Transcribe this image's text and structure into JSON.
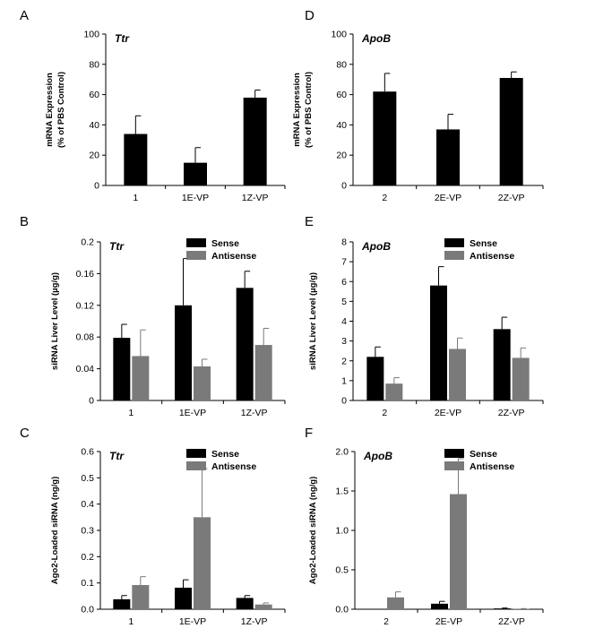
{
  "chart_data": [
    {
      "letter": "A",
      "type": "bar",
      "title": "Ttr",
      "ylabel": [
        "mRNA Expression",
        "(% of PBS Control)"
      ],
      "ylim": [
        0,
        100
      ],
      "yticks": [
        "0",
        "20",
        "40",
        "60",
        "80",
        "100"
      ],
      "categories": [
        "1",
        "1E-VP",
        "1Z-VP"
      ],
      "series": [
        {
          "name": "",
          "color": "#000000",
          "values": [
            34,
            15,
            58
          ],
          "errors": [
            12,
            10,
            5
          ]
        }
      ],
      "legend": []
    },
    {
      "letter": "D",
      "type": "bar",
      "title": "ApoB",
      "ylabel": [
        "mRNA Expression",
        "(% of PBS Control)"
      ],
      "ylim": [
        0,
        100
      ],
      "yticks": [
        "0",
        "20",
        "40",
        "60",
        "80",
        "100"
      ],
      "categories": [
        "2",
        "2E-VP",
        "2Z-VP"
      ],
      "series": [
        {
          "name": "",
          "color": "#000000",
          "values": [
            62,
            37,
            71
          ],
          "errors": [
            12,
            10,
            4
          ]
        }
      ],
      "legend": []
    },
    {
      "letter": "B",
      "type": "bar",
      "title": "Ttr",
      "ylabel": [
        "siRNA Liver Level (µg/g)"
      ],
      "ylim": [
        0,
        0.2
      ],
      "yticks": [
        "0",
        "0.04",
        "0.08",
        "0.12",
        "0.16",
        "0.2"
      ],
      "categories": [
        "1",
        "1E-VP",
        "1Z-VP"
      ],
      "series": [
        {
          "name": "Sense",
          "color": "#000000",
          "values": [
            0.079,
            0.12,
            0.142
          ],
          "errors": [
            0.017,
            0.059,
            0.021
          ]
        },
        {
          "name": "Antisense",
          "color": "#7a7a7a",
          "values": [
            0.056,
            0.043,
            0.07
          ],
          "errors": [
            0.033,
            0.009,
            0.021
          ]
        }
      ],
      "legend": [
        "Sense",
        "Antisense"
      ]
    },
    {
      "letter": "E",
      "type": "bar",
      "title": "ApoB",
      "ylabel": [
        "siRNA Liver Level (µg/g)"
      ],
      "ylim": [
        0,
        8
      ],
      "yticks": [
        "0",
        "1",
        "2",
        "3",
        "4",
        "5",
        "6",
        "7",
        "8"
      ],
      "categories": [
        "2",
        "2E-VP",
        "2Z-VP"
      ],
      "series": [
        {
          "name": "Sense",
          "color": "#000000",
          "values": [
            2.2,
            5.8,
            3.6
          ],
          "errors": [
            0.5,
            0.95,
            0.6
          ]
        },
        {
          "name": "Antisense",
          "color": "#7a7a7a",
          "values": [
            0.85,
            2.6,
            2.15
          ],
          "errors": [
            0.3,
            0.55,
            0.5
          ]
        }
      ],
      "legend": [
        "Sense",
        "Antisense"
      ]
    },
    {
      "letter": "C",
      "type": "bar",
      "title": "Ttr",
      "ylabel": [
        "Ago2-Loaded siRNA (ng/g)"
      ],
      "ylim": [
        0,
        0.6
      ],
      "yticks": [
        "0.0",
        "0.1",
        "0.2",
        "0.3",
        "0.4",
        "0.5",
        "0.6"
      ],
      "categories": [
        "1",
        "1E-VP",
        "1Z-VP"
      ],
      "series": [
        {
          "name": "Sense",
          "color": "#000000",
          "values": [
            0.038,
            0.082,
            0.043
          ],
          "errors": [
            0.014,
            0.03,
            0.009
          ]
        },
        {
          "name": "Antisense",
          "color": "#7a7a7a",
          "values": [
            0.092,
            0.35,
            0.018
          ],
          "errors": [
            0.032,
            0.185,
            0.006
          ]
        }
      ],
      "legend": [
        "Sense",
        "Antisense"
      ]
    },
    {
      "letter": "F",
      "type": "bar",
      "title": "ApoB",
      "ylabel": [
        "Ago2-Loaded siRNA (ng/g)"
      ],
      "ylim": [
        0,
        2.0
      ],
      "yticks": [
        "0.0",
        "0.5",
        "1.0",
        "1.5",
        "2.0"
      ],
      "categories": [
        "2",
        "2E-VP",
        "2Z-VP"
      ],
      "series": [
        {
          "name": "Sense",
          "color": "#000000",
          "values": [
            0.0,
            0.07,
            0.01
          ],
          "errors": [
            0,
            0.03,
            0.005
          ]
        },
        {
          "name": "Antisense",
          "color": "#7a7a7a",
          "values": [
            0.15,
            1.46,
            0.005
          ],
          "errors": [
            0.07,
            0.45,
            0.003
          ]
        }
      ],
      "legend": [
        "Sense",
        "Antisense"
      ]
    }
  ]
}
